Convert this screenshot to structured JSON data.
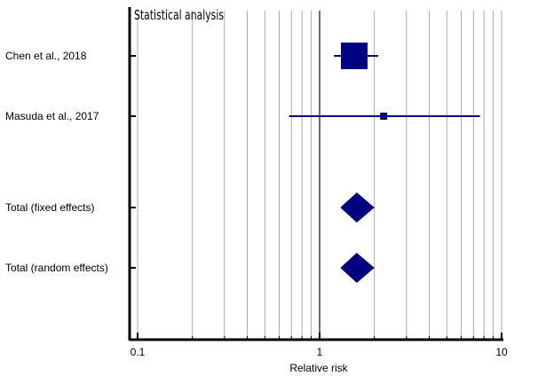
{
  "chart_data": {
    "type": "forest",
    "title": "Statistical analysis",
    "xlabel": "Relative risk",
    "x_scale": "log",
    "xlim": [
      0.1,
      10
    ],
    "major_ticks": [
      0.1,
      1,
      10
    ],
    "major_tick_labels": [
      "0.1",
      "1",
      "10"
    ],
    "minor_ticks": [
      0.2,
      0.3,
      0.4,
      0.5,
      0.6,
      0.7,
      0.8,
      0.9,
      2,
      3,
      4,
      5,
      6,
      7,
      8,
      9
    ],
    "reference_line": 1,
    "grid": true,
    "studies": [
      {
        "label": "Chen et al., 2018",
        "rr": 1.55,
        "ci": [
          1.2,
          2.1
        ],
        "marker": "square",
        "weight": "large"
      },
      {
        "label": "Masuda et al., 2017",
        "rr": 2.25,
        "ci": [
          0.68,
          7.6
        ],
        "marker": "square",
        "weight": "small"
      },
      {
        "label": "Total (fixed effects)",
        "rr": 1.6,
        "ci": [
          1.3,
          2.0
        ],
        "marker": "diamond"
      },
      {
        "label": "Total (random effects)",
        "rr": 1.6,
        "ci": [
          1.3,
          2.0
        ],
        "marker": "diamond"
      }
    ],
    "colors": {
      "marker": "#000080",
      "reference": "#000080",
      "grid": "#999999",
      "axis": "#000000"
    }
  }
}
